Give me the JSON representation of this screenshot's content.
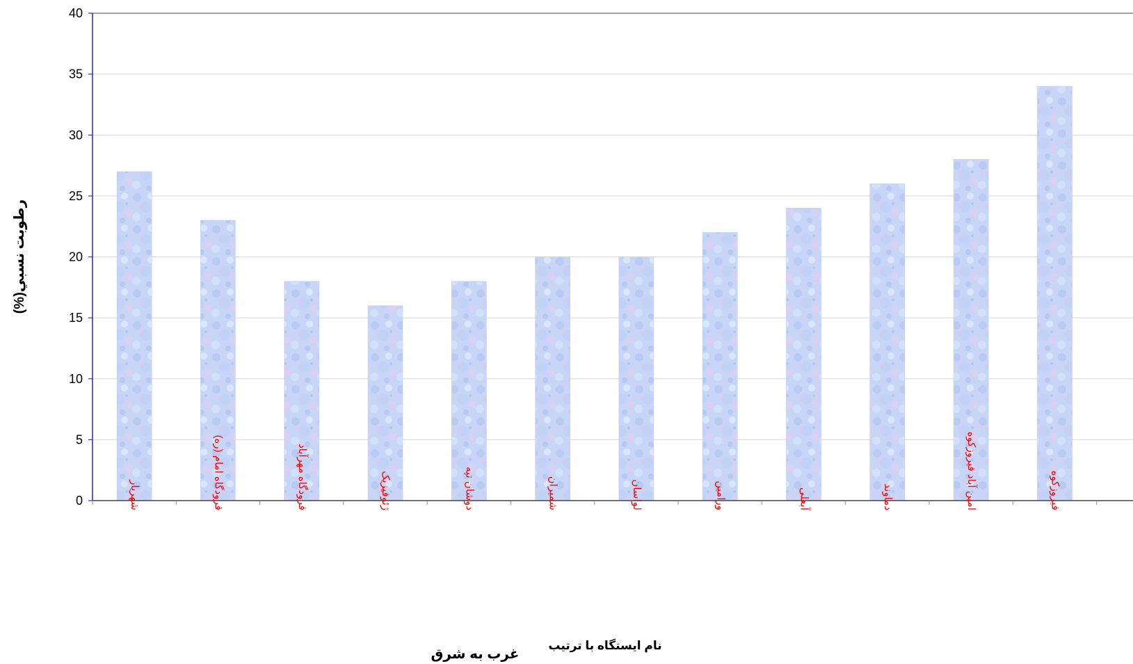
{
  "chart_data": {
    "type": "bar",
    "title": "",
    "ylabel": "رطوبت نسبي(%)",
    "xlabel": "نام ایستگاه با ترتیب",
    "xlabel_secondary": "غرب به شرق",
    "categories": [
      "شهریار",
      "فرودگاه امام (ره)",
      "فرودگاه مهرآباد",
      "ژئوفیزیک",
      "دوشان تپه",
      "شمیران",
      "لواسان",
      "ورامین",
      "آبعلی",
      "دماوند",
      "امین آباد فیروزکوه",
      "فیروزکوه"
    ],
    "values": [
      27,
      23,
      18,
      16,
      18,
      20,
      20,
      22,
      24,
      26,
      28,
      34
    ],
    "ylim": [
      0,
      40
    ],
    "yticks": [
      0,
      5,
      10,
      15,
      20,
      25,
      30,
      35,
      40
    ],
    "grid": true,
    "legend": "none"
  },
  "colors": {
    "bar_fill": "#c8d4f6",
    "bar_fill_alt": "#d6e4fa",
    "bar_accent": "#e9c8ec",
    "axis": "#2e3aa8",
    "grid": "#d6d6d6",
    "category_text": "#ff0000",
    "title_text": "#ff0000"
  }
}
